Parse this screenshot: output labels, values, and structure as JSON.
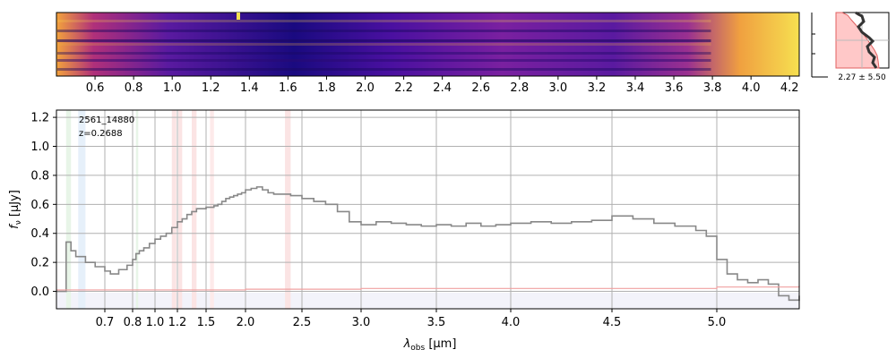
{
  "chart_data": [
    {
      "type": "heatmap",
      "description": "2D spectrum (cutout), wavelength axis",
      "x_ticks": [
        "0.6",
        "0.8",
        "1.0",
        "1.2",
        "1.4",
        "1.6",
        "1.8",
        "2.0",
        "2.2",
        "2.4",
        "2.6",
        "2.8",
        "3.0",
        "3.2",
        "3.4",
        "3.6",
        "3.8",
        "4.0",
        "4.2"
      ],
      "x_tick_values": [
        0.6,
        0.8,
        1.0,
        1.2,
        1.4,
        1.6,
        1.8,
        2.0,
        2.2,
        2.4,
        2.6,
        2.8,
        3.0,
        3.2,
        3.4,
        3.6,
        3.8,
        4.0,
        4.2
      ],
      "xlim": [
        0.4,
        4.25
      ],
      "colormap": "plasma"
    },
    {
      "type": "line",
      "description": "Spatial profile panel",
      "label": "2.27 ± 5.50",
      "colors": {
        "profile": "#333333",
        "fill": "#ffc8c8",
        "edge": "#e06060"
      }
    },
    {
      "type": "line",
      "annotation": [
        "2561_14880",
        "z=0.2688"
      ],
      "xlabel_main": "λ",
      "xlabel_sub": "obs",
      "xlabel_unit": " [μm]",
      "ylabel_main": "f",
      "ylabel_sub": "ν",
      "ylabel_unit": " [μJy]",
      "xlim": [
        0.6,
        5.4
      ],
      "ylim": [
        -0.12,
        1.25
      ],
      "x_scale": "sqrt-like (nonlinear)",
      "x_ticks": [
        "0.7",
        "0.8",
        "1.0",
        "1.2",
        "1.5",
        "2.0",
        "2.5",
        "3.0",
        "3.5",
        "4.0",
        "4.5",
        "5.0"
      ],
      "x_tick_values": [
        0.7,
        0.8,
        1.0,
        1.2,
        1.5,
        2.0,
        2.5,
        3.0,
        3.5,
        4.0,
        4.5,
        5.0
      ],
      "y_ticks": [
        "0.0",
        "0.2",
        "0.4",
        "0.6",
        "0.8",
        "1.0",
        "1.2"
      ],
      "y_tick_values": [
        0.0,
        0.2,
        0.4,
        0.6,
        0.8,
        1.0,
        1.2
      ],
      "grid": true,
      "series": [
        {
          "color": "#888888",
          "x": [
            0.6,
            0.62,
            0.63,
            0.64,
            0.66,
            0.68,
            0.7,
            0.72,
            0.75,
            0.78,
            0.8,
            0.83,
            0.86,
            0.9,
            0.95,
            1.0,
            1.05,
            1.1,
            1.15,
            1.2,
            1.25,
            1.3,
            1.35,
            1.4,
            1.45,
            1.5,
            1.55,
            1.6,
            1.65,
            1.7,
            1.75,
            1.8,
            1.85,
            1.9,
            1.95,
            2.0,
            2.05,
            2.1,
            2.15,
            2.2,
            2.25,
            2.3,
            2.4,
            2.5,
            2.6,
            2.7,
            2.8,
            2.9,
            3.0,
            3.1,
            3.2,
            3.3,
            3.4,
            3.5,
            3.6,
            3.7,
            3.8,
            3.9,
            4.0,
            4.1,
            4.2,
            4.3,
            4.4,
            4.5,
            4.6,
            4.7,
            4.8,
            4.9,
            4.95,
            5.0,
            5.05,
            5.1,
            5.15,
            5.2,
            5.25,
            5.3,
            5.35,
            5.4
          ],
          "y": [
            0.0,
            0.34,
            0.28,
            0.24,
            0.2,
            0.17,
            0.14,
            0.12,
            0.15,
            0.18,
            0.22,
            0.26,
            0.28,
            0.3,
            0.33,
            0.36,
            0.38,
            0.4,
            0.44,
            0.48,
            0.5,
            0.53,
            0.55,
            0.57,
            0.57,
            0.58,
            0.58,
            0.59,
            0.6,
            0.62,
            0.64,
            0.65,
            0.66,
            0.67,
            0.68,
            0.7,
            0.71,
            0.72,
            0.7,
            0.68,
            0.67,
            0.67,
            0.66,
            0.64,
            0.62,
            0.6,
            0.55,
            0.48,
            0.46,
            0.48,
            0.47,
            0.46,
            0.45,
            0.46,
            0.45,
            0.47,
            0.45,
            0.46,
            0.47,
            0.48,
            0.47,
            0.48,
            0.49,
            0.52,
            0.5,
            0.47,
            0.45,
            0.42,
            0.38,
            0.22,
            0.12,
            0.08,
            0.06,
            0.08,
            0.05,
            -0.03,
            -0.06,
            -0.03
          ]
        },
        {
          "color": "#f0a0a0",
          "x": [
            0.6,
            1.0,
            2.0,
            3.0,
            4.0,
            5.0,
            5.4
          ],
          "y": [
            0.01,
            0.01,
            0.015,
            0.02,
            0.02,
            0.03,
            0.04
          ]
        }
      ],
      "shaded_bands": [
        {
          "x0": 0.62,
          "x1": 0.63,
          "color": "#e8f5e8"
        },
        {
          "x0": 0.645,
          "x1": 0.66,
          "color": "#e6f0fa"
        },
        {
          "x0": 0.83,
          "x1": 0.85,
          "color": "#e8f5e8"
        },
        {
          "x0": 1.15,
          "x1": 1.19,
          "color": "#fbe4e4"
        },
        {
          "x0": 1.21,
          "x1": 1.25,
          "color": "#fbe4e4"
        },
        {
          "x0": 1.35,
          "x1": 1.4,
          "color": "#fbe4e4"
        },
        {
          "x0": 1.55,
          "x1": 1.6,
          "color": "#fdeaea"
        },
        {
          "x0": 2.35,
          "x1": 2.4,
          "color": "#fbe4e4"
        }
      ]
    }
  ]
}
